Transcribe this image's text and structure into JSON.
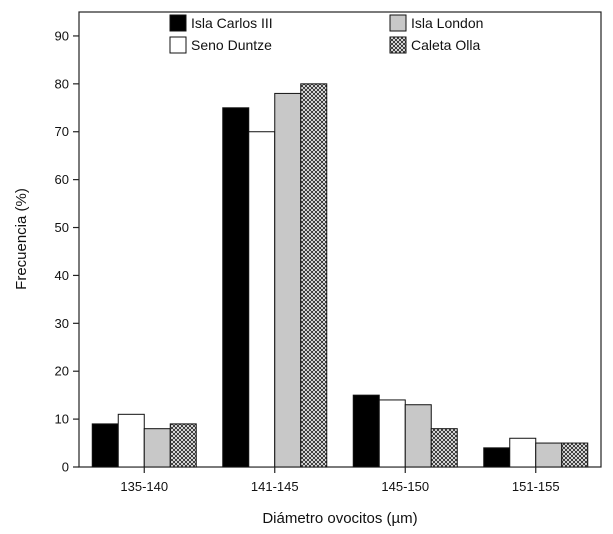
{
  "chart_data": {
    "type": "bar",
    "categories": [
      "135-140",
      "141-145",
      "145-150",
      "151-155"
    ],
    "series": [
      {
        "name": "Isla Carlos III",
        "values": [
          9,
          75,
          15,
          4
        ],
        "color": "#000000",
        "pattern": "solid"
      },
      {
        "name": "Seno Duntze",
        "values": [
          11,
          70,
          14,
          6
        ],
        "color": "#ffffff",
        "pattern": "solid"
      },
      {
        "name": "Isla London",
        "values": [
          8,
          78,
          13,
          5
        ],
        "color": "#c8c8c8",
        "pattern": "solid"
      },
      {
        "name": "Caleta Olla",
        "values": [
          9,
          80,
          8,
          5
        ],
        "color": "#ffffff",
        "pattern": "crosshatch"
      }
    ],
    "yticks": [
      "0",
      "10",
      "20",
      "30",
      "40",
      "50",
      "60",
      "70",
      "80",
      "90"
    ],
    "title": "",
    "xlabel": "Diámetro ovocitos (µm)",
    "ylabel": "Frecuencia (%)",
    "ylim": [
      0,
      95
    ],
    "grid": false,
    "legend_position": "top"
  }
}
